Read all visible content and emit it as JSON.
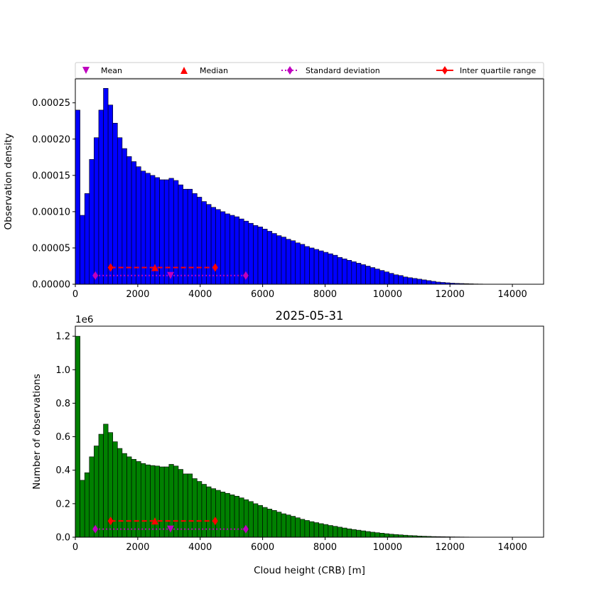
{
  "chart_data": [
    {
      "type": "bar",
      "title": "",
      "xlabel": "",
      "ylabel": "Observation density",
      "xlim": [
        0,
        15000
      ],
      "ylim": [
        0,
        0.000283
      ],
      "xticks": [
        "0",
        "2000",
        "4000",
        "6000",
        "8000",
        "10000",
        "12000",
        "14000"
      ],
      "yticks": [
        "0.00000",
        "0.00005",
        "0.00010",
        "0.00015",
        "0.00020",
        "0.00025"
      ],
      "bin_width": 150,
      "bar_color": "#0000ff",
      "legend_position": "top, above axes",
      "legend": [
        {
          "label": "Mean",
          "marker": "triangle-down",
          "color": "#bf00bf",
          "style": "none"
        },
        {
          "label": "Median",
          "marker": "triangle-up",
          "color": "#ff0000",
          "style": "none"
        },
        {
          "label": "Standard deviation",
          "marker": "diamond",
          "color": "#bf00bf",
          "style": "dotted"
        },
        {
          "label": "Inter quartile range",
          "marker": "diamond",
          "color": "#ff0000",
          "style": "solid"
        }
      ],
      "values": [
        0.00024,
        9.5e-05,
        0.000125,
        0.000172,
        0.000202,
        0.00024,
        0.00027,
        0.000247,
        0.000222,
        0.000202,
        0.000187,
        0.000176,
        0.000169,
        0.000162,
        0.000156,
        0.000153,
        0.00015,
        0.000147,
        0.000144,
        0.000144,
        0.000146,
        0.000143,
        0.000137,
        0.000131,
        0.000131,
        0.000125,
        0.00012,
        0.000114,
        0.00011,
        0.000106,
        0.000103,
        0.0001,
        9.7e-05,
        9.5e-05,
        9.3e-05,
        9e-05,
        8.7e-05,
        8.4e-05,
        8.1e-05,
        7.9e-05,
        7.6e-05,
        7.3e-05,
        7e-05,
        6.7e-05,
        6.5e-05,
        6.2e-05,
        6e-05,
        5.7e-05,
        5.5e-05,
        5.2e-05,
        5e-05,
        4.8e-05,
        4.6e-05,
        4.4e-05,
        4.2e-05,
        4e-05,
        3.7e-05,
        3.5e-05,
        3.3e-05,
        3.1e-05,
        2.9e-05,
        2.7e-05,
        2.5e-05,
        2.3e-05,
        2.1e-05,
        1.9e-05,
        1.7e-05,
        1.5e-05,
        1.3e-05,
        1.2e-05,
        1e-05,
        9e-06,
        8e-06,
        7e-06,
        6e-06,
        5e-06,
        4e-06,
        3e-06,
        2.5e-06,
        2e-06,
        1.5e-06,
        1.2e-06,
        1e-06,
        8e-07,
        6e-07,
        4e-07,
        3e-07,
        2e-07,
        1.5e-07,
        1e-07,
        8e-08,
        6e-08,
        4e-08,
        2e-08
      ],
      "stats": {
        "mean": {
          "x": 3050,
          "y": 1.2e-05
        },
        "median": {
          "x": 2550,
          "y": 2.3e-05
        },
        "standard_deviation": {
          "x": [
            640,
            5460
          ],
          "y": 1.2e-05
        },
        "inter_quartile_range": {
          "x": [
            1130,
            4480
          ],
          "y": 2.3e-05
        }
      }
    },
    {
      "type": "bar",
      "title": "2025-05-31",
      "xlabel": "Cloud height (CRB) [m]",
      "ylabel": "Number of observations",
      "offset_text": "1e6",
      "xlim": [
        0,
        15000
      ],
      "ylim": [
        0,
        1.26
      ],
      "xticks": [
        "0",
        "2000",
        "4000",
        "6000",
        "8000",
        "10000",
        "12000",
        "14000"
      ],
      "yticks": [
        "0.0",
        "0.2",
        "0.4",
        "0.6",
        "0.8",
        "1.0",
        "1.2"
      ],
      "bin_width": 150,
      "bar_color": "#008000",
      "values": [
        1.2,
        0.34,
        0.385,
        0.48,
        0.545,
        0.615,
        0.675,
        0.625,
        0.57,
        0.53,
        0.5,
        0.48,
        0.465,
        0.452,
        0.44,
        0.432,
        0.428,
        0.425,
        0.42,
        0.42,
        0.435,
        0.425,
        0.405,
        0.378,
        0.378,
        0.35,
        0.333,
        0.316,
        0.301,
        0.29,
        0.28,
        0.27,
        0.262,
        0.253,
        0.245,
        0.235,
        0.224,
        0.213,
        0.2,
        0.19,
        0.178,
        0.168,
        0.16,
        0.15,
        0.14,
        0.133,
        0.125,
        0.116,
        0.107,
        0.1,
        0.093,
        0.087,
        0.081,
        0.076,
        0.07,
        0.065,
        0.06,
        0.055,
        0.05,
        0.046,
        0.042,
        0.038,
        0.034,
        0.03,
        0.027,
        0.024,
        0.021,
        0.018,
        0.016,
        0.014,
        0.012,
        0.01,
        0.009,
        0.007,
        0.006,
        0.005,
        0.004,
        0.0035,
        0.003,
        0.0025,
        0.002,
        0.0017,
        0.0014,
        0.0011,
        0.0009,
        0.0007,
        0.0005,
        0.0004,
        0.0003,
        0.0002,
        0.00015,
        0.0001,
        8e-05,
        5e-05
      ],
      "stats": {
        "mean": {
          "x": 3050,
          "y": 0.048
        },
        "median": {
          "x": 2550,
          "y": 0.097
        },
        "standard_deviation": {
          "x": [
            640,
            5460
          ],
          "y": 0.048
        },
        "inter_quartile_range": {
          "x": [
            1130,
            4480
          ],
          "y": 0.097
        }
      }
    }
  ]
}
